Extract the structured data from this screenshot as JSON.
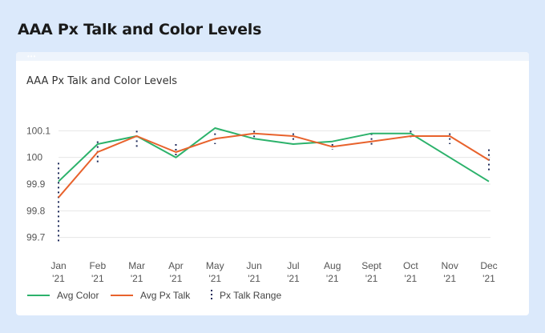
{
  "page_title": "AAA Px Talk and Color Levels",
  "card": {
    "title": "AAA Px Talk and Color Levels",
    "handle_dots": "•••"
  },
  "colors": {
    "color": "#2cb26b",
    "pxtalk": "#e8622c",
    "range": "#1f2b5b",
    "grid": "#e6e6e6"
  },
  "chart_data": {
    "type": "line",
    "title": "AAA Px Talk and Color Levels",
    "categories": [
      [
        "Jan",
        "'21"
      ],
      [
        "Feb",
        "'21"
      ],
      [
        "Mar",
        "'21"
      ],
      [
        "Apr",
        "'21"
      ],
      [
        "May",
        "'21"
      ],
      [
        "Jun",
        "'21"
      ],
      [
        "Jul",
        "'21"
      ],
      [
        "Aug",
        "'21"
      ],
      [
        "Sept",
        "'21"
      ],
      [
        "Oct",
        "'21"
      ],
      [
        "Nov",
        "'21"
      ],
      [
        "Dec",
        "'21"
      ]
    ],
    "ylim": [
      99.675,
      100.125
    ],
    "yticks": [
      {
        "value": 99.7,
        "label": "99.7"
      },
      {
        "value": 99.8,
        "label": "99.8"
      },
      {
        "value": 99.9,
        "label": "99.9"
      },
      {
        "value": 100,
        "label": "100"
      },
      {
        "value": 100.1,
        "label": "100.1"
      }
    ],
    "grid": true,
    "legend_position": "bottom-left",
    "series": [
      {
        "name": "Avg Color",
        "key": "color",
        "values": [
          99.91,
          100.05,
          100.08,
          100.0,
          100.11,
          100.07,
          100.05,
          100.06,
          100.09,
          100.09,
          100.0,
          99.91
        ]
      },
      {
        "name": "Avg Px Talk",
        "key": "pxtalk",
        "values": [
          99.85,
          100.02,
          100.08,
          100.02,
          100.07,
          100.09,
          100.08,
          100.04,
          100.06,
          100.08,
          100.08,
          99.99
        ]
      }
    ],
    "range": {
      "name": "Px Talk Range",
      "low": [
        99.68,
        99.98,
        100.04,
        100.0,
        100.05,
        100.07,
        100.06,
        100.03,
        100.04,
        100.07,
        100.05,
        99.95
      ],
      "high": [
        99.98,
        100.06,
        100.1,
        100.05,
        100.09,
        100.1,
        100.09,
        100.05,
        100.09,
        100.1,
        100.09,
        100.03
      ]
    }
  }
}
